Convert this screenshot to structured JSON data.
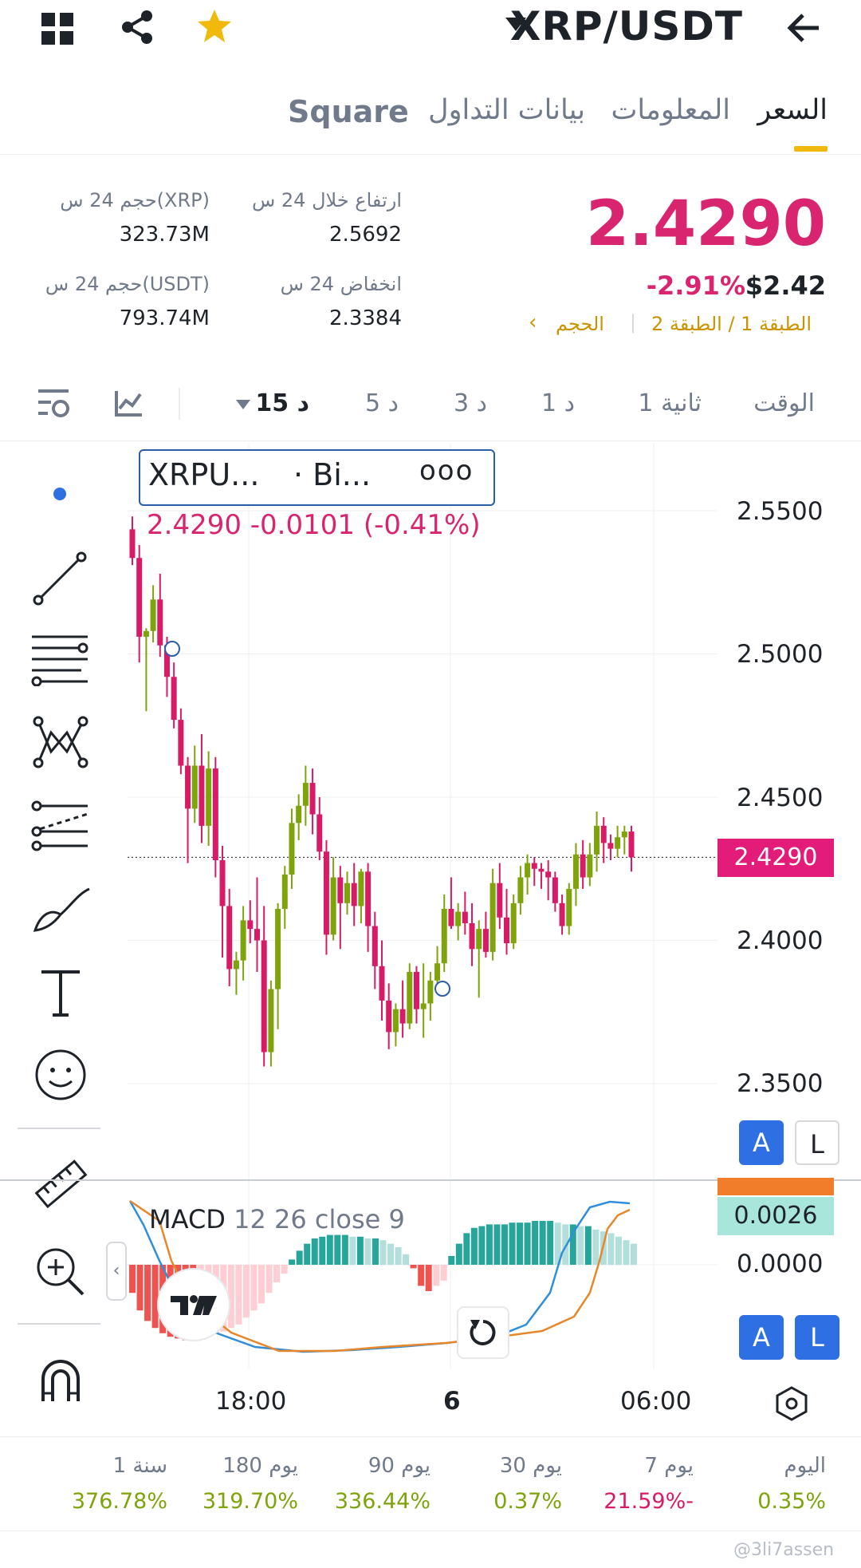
{
  "header": {
    "pair": "XRP/USDT",
    "icons": [
      "grid-icon",
      "share-icon",
      "star-icon",
      "dropdown-triangle-icon",
      "back-arrow-icon"
    ]
  },
  "tabs": [
    {
      "label": "السعر",
      "active": true
    },
    {
      "label": "المعلومات",
      "active": false
    },
    {
      "label": "بيانات التداول",
      "active": false
    },
    {
      "label": "Square",
      "active": false
    }
  ],
  "ticker": {
    "price": "2.4290",
    "usd_price": "$2.42",
    "change_pct": "-2.91%",
    "layers_label": "الطبقة 1 / الطبقة 2",
    "volume_tag": "الحجم",
    "high_label": "ارتفاع خلال 24 س",
    "high_value": "2.5692",
    "low_label": "انخفاض 24 س",
    "low_value": "2.3384",
    "vol_xrp_label": "حجم 24 س(XRP)",
    "vol_xrp_value": "323.73M",
    "vol_usdt_label": "حجم 24 س(USDT)",
    "vol_usdt_value": "793.74M"
  },
  "intervals": {
    "time_label": "الوقت",
    "items": [
      "1 ثانية",
      "1 د",
      "3 د",
      "5 د",
      "15 د"
    ],
    "active": "15 د"
  },
  "chart_legend": {
    "symbol": "XRPU...",
    "source": "· Bi...",
    "more": "ooo",
    "values": "2.4290  -0.0101 (-0.41%)"
  },
  "chart_data": {
    "type": "candlestick",
    "y_ticks": [
      "2.5500",
      "2.5000",
      "2.4500",
      "2.4000",
      "2.3500"
    ],
    "ylim": [
      2.32,
      2.56
    ],
    "x_ticks": [
      "18:00",
      "6",
      "06:00"
    ],
    "current_price": "2.4290",
    "up_color": "#7fa30a",
    "down_color": "#d81b66",
    "candles": [
      [
        2.5435,
        2.548,
        2.531,
        2.5335
      ],
      [
        2.5335,
        2.538,
        2.497,
        2.506
      ],
      [
        2.506,
        2.509,
        2.48,
        2.508
      ],
      [
        2.508,
        2.524,
        2.504,
        2.519
      ],
      [
        2.519,
        2.528,
        2.499,
        2.503
      ],
      [
        2.503,
        2.506,
        2.485,
        2.492
      ],
      [
        2.492,
        2.497,
        2.474,
        2.477
      ],
      [
        2.477,
        2.481,
        2.458,
        2.461
      ],
      [
        2.461,
        2.464,
        2.427,
        2.446
      ],
      [
        2.446,
        2.468,
        2.441,
        2.461
      ],
      [
        2.461,
        2.472,
        2.434,
        2.44
      ],
      [
        2.44,
        2.466,
        2.433,
        2.46
      ],
      [
        2.46,
        2.464,
        2.422,
        2.428
      ],
      [
        2.428,
        2.433,
        2.394,
        2.412
      ],
      [
        2.412,
        2.418,
        2.384,
        2.39
      ],
      [
        2.39,
        2.396,
        2.381,
        2.393
      ],
      [
        2.393,
        2.412,
        2.386,
        2.407
      ],
      [
        2.407,
        2.414,
        2.399,
        2.404
      ],
      [
        2.404,
        2.422,
        2.389,
        2.4
      ],
      [
        2.4,
        2.412,
        2.356,
        2.361
      ],
      [
        2.361,
        2.386,
        2.356,
        2.383
      ],
      [
        2.383,
        2.413,
        2.369,
        2.411
      ],
      [
        2.411,
        2.426,
        2.404,
        2.423
      ],
      [
        2.423,
        2.446,
        2.418,
        2.441
      ],
      [
        2.441,
        2.451,
        2.435,
        2.447
      ],
      [
        2.447,
        2.461,
        2.44,
        2.455
      ],
      [
        2.455,
        2.46,
        2.437,
        2.444
      ],
      [
        2.444,
        2.45,
        2.428,
        2.431
      ],
      [
        2.431,
        2.435,
        2.395,
        2.402
      ],
      [
        2.402,
        2.429,
        2.4,
        2.422
      ],
      [
        2.422,
        2.426,
        2.397,
        2.413
      ],
      [
        2.413,
        2.424,
        2.409,
        2.42
      ],
      [
        2.42,
        2.427,
        2.405,
        2.412
      ],
      [
        2.412,
        2.425,
        2.406,
        2.424
      ],
      [
        2.424,
        2.427,
        2.396,
        2.405
      ],
      [
        2.405,
        2.41,
        2.383,
        2.391
      ],
      [
        2.391,
        2.4,
        2.372,
        2.379
      ],
      [
        2.379,
        2.385,
        2.362,
        2.368
      ],
      [
        2.368,
        2.378,
        2.363,
        2.376
      ],
      [
        2.376,
        2.386,
        2.366,
        2.371
      ],
      [
        2.371,
        2.392,
        2.369,
        2.389
      ],
      [
        2.389,
        2.391,
        2.371,
        2.376
      ],
      [
        2.376,
        2.392,
        2.366,
        2.378
      ],
      [
        2.378,
        2.389,
        2.372,
        2.386
      ],
      [
        2.386,
        2.398,
        2.383,
        2.392
      ],
      [
        2.392,
        2.416,
        2.389,
        2.411
      ],
      [
        2.411,
        2.422,
        2.404,
        2.405
      ],
      [
        2.405,
        2.413,
        2.4,
        2.41
      ],
      [
        2.41,
        2.417,
        2.402,
        2.406
      ],
      [
        2.406,
        2.413,
        2.391,
        2.397
      ],
      [
        2.397,
        2.407,
        2.38,
        2.404
      ],
      [
        2.404,
        2.41,
        2.394,
        2.396
      ],
      [
        2.396,
        2.425,
        2.393,
        2.42
      ],
      [
        2.42,
        2.427,
        2.404,
        2.408
      ],
      [
        2.408,
        2.418,
        2.395,
        2.399
      ],
      [
        2.399,
        2.416,
        2.397,
        2.413
      ],
      [
        2.413,
        2.426,
        2.409,
        2.422
      ],
      [
        2.422,
        2.43,
        2.416,
        2.427
      ],
      [
        2.427,
        2.429,
        2.419,
        2.425
      ],
      [
        2.425,
        2.427,
        2.418,
        2.424
      ],
      [
        2.424,
        2.428,
        2.414,
        2.422
      ],
      [
        2.422,
        2.424,
        2.41,
        2.413
      ],
      [
        2.413,
        2.416,
        2.402,
        2.405
      ],
      [
        2.405,
        2.42,
        2.402,
        2.418
      ],
      [
        2.418,
        2.434,
        2.412,
        2.43
      ],
      [
        2.43,
        2.435,
        2.418,
        2.422
      ],
      [
        2.422,
        2.434,
        2.419,
        2.43
      ],
      [
        2.43,
        2.445,
        2.424,
        2.44
      ],
      [
        2.44,
        2.443,
        2.427,
        2.434
      ],
      [
        2.434,
        2.437,
        2.428,
        2.432
      ],
      [
        2.432,
        2.44,
        2.429,
        2.436
      ],
      [
        2.436,
        2.44,
        2.43,
        2.438
      ],
      [
        2.438,
        2.44,
        2.424,
        2.429
      ]
    ]
  },
  "macd": {
    "title": "MACD",
    "params": "12 26 close 9",
    "value": "0.0026",
    "zero": "0.0000",
    "histogram": [
      -1.6,
      -2.6,
      -3.2,
      -3.6,
      -3.9,
      -4.1,
      -4.2,
      -4.3,
      -4.3,
      -4.2,
      -4.0,
      -3.9,
      -3.8,
      -3.6,
      -3.4,
      -3.0,
      -2.6,
      -2.2,
      -1.6,
      -1.0,
      -0.5,
      0.3,
      0.8,
      1.2,
      1.5,
      1.6,
      1.7,
      1.7,
      1.7,
      1.6,
      1.6,
      1.5,
      1.5,
      1.4,
      1.2,
      1.0,
      0.6,
      -0.2,
      -1.2,
      -1.5,
      -1.2,
      -0.9,
      0.5,
      1.2,
      1.8,
      2.1,
      2.2,
      2.3,
      2.3,
      2.3,
      2.4,
      2.4,
      2.4,
      2.5,
      2.5,
      2.5,
      2.4,
      2.3,
      2.3,
      2.2,
      2.2,
      2.0,
      1.9,
      1.8,
      1.6,
      1.4,
      1.2
    ]
  },
  "chart_buttons": {
    "a": "A",
    "l": "L"
  },
  "performance": [
    {
      "label": "اليوم",
      "value": "0.35%",
      "color": "#7fa30a"
    },
    {
      "label": "7 يوم",
      "value": "21.59%-",
      "color": "#d81b66"
    },
    {
      "label": "30 يوم",
      "value": "0.37%",
      "color": "#7fa30a"
    },
    {
      "label": "90 يوم",
      "value": "336.44%",
      "color": "#7fa30a"
    },
    {
      "label": "180 يوم",
      "value": "319.70%",
      "color": "#7fa30a"
    },
    {
      "label": "1 سنة",
      "value": "376.78%",
      "color": "#7fa30a"
    }
  ],
  "watermark": "@3li7assen"
}
